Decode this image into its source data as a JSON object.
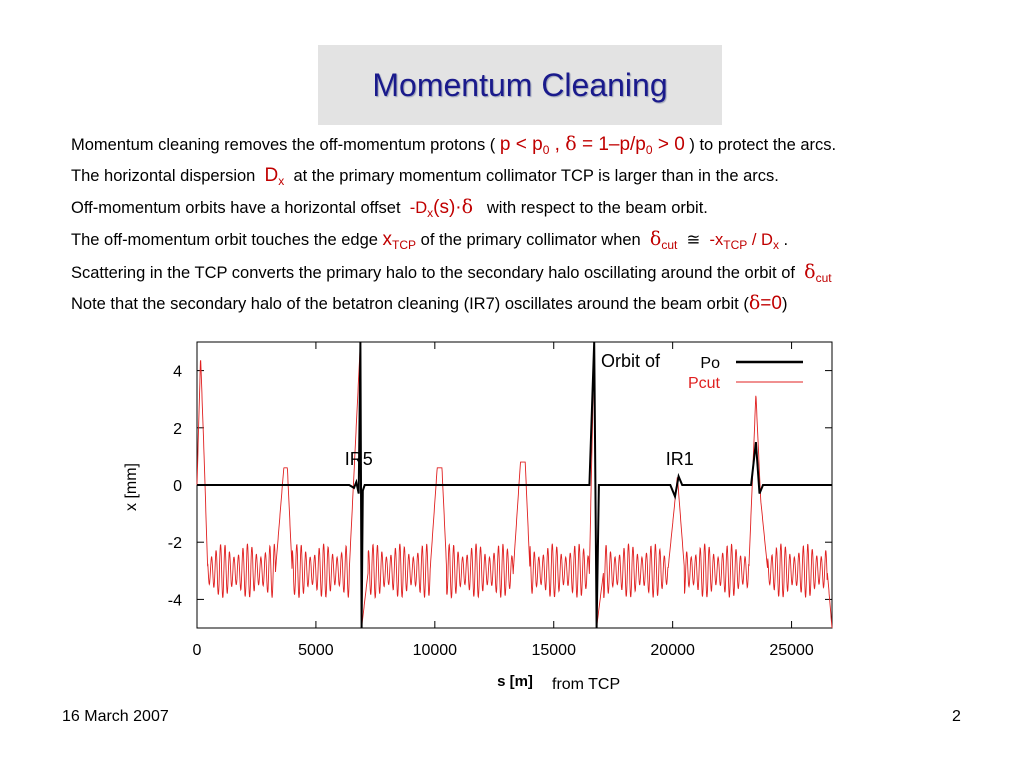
{
  "title": "Momentum Cleaning",
  "lines": [
    {
      "a": "Momentum cleaning removes the off-momentum protons (",
      "r1": "p < p",
      "s1": "0",
      "r2": " , ",
      "sym": "δ",
      "r3": " = 1–p/p",
      "s2": "0",
      "r4": " > 0",
      "b": ")  to protect the arcs."
    },
    {
      "a": "The horizontal dispersion",
      "r1": "D",
      "s1": "x",
      "b": "at the primary momentum collimator TCP is larger than in the arcs."
    },
    {
      "a": "Off-momentum orbits  have a horizontal offset",
      "r1": "-D",
      "s1": "x",
      "r2": "(s)·",
      "sym": "δ",
      "b": "with respect to the beam orbit."
    },
    {
      "a": "The off-momentum orbit  touches the edge",
      "r1": "x",
      "s1": "TCP",
      "b": "of the primary collimator  when",
      "sym": "δ",
      "s2": "cut",
      "approx": "≅",
      "r2": "-x",
      "s3": "TCP",
      "r3": " / D",
      "s4": "x",
      "end": " ."
    },
    {
      "a": "Scattering in the TCP converts the primary halo to the secondary halo  oscillating around the orbit of",
      "sym": "δ",
      "s1": "cut"
    },
    {
      "a": "Note that the secondary halo of the betatron cleaning (IR7) oscillates around the beam orbit   (",
      "sym": "δ",
      "r1": "=0",
      "b": ")"
    }
  ],
  "footer": {
    "date": "16 March 2007",
    "page": "2"
  },
  "chart_data": {
    "type": "line",
    "xlabel": "s [m]",
    "xlabel_note": "from TCP",
    "ylabel": "x [mm]",
    "xlim": [
      0,
      26700
    ],
    "ylim": [
      -5,
      5
    ],
    "xticks": [
      0,
      5000,
      10000,
      15000,
      20000,
      25000
    ],
    "yticks": [
      -4,
      -2,
      0,
      2,
      4
    ],
    "legend": {
      "title": "Orbit of",
      "position": "top-right"
    },
    "annotations": [
      {
        "text": "IR5",
        "x": 6800,
        "y": 0.7
      },
      {
        "text": "IR1",
        "x": 20300,
        "y": 0.7
      }
    ],
    "series": [
      {
        "name": "Po",
        "color": "#000000",
        "points": [
          [
            0,
            0
          ],
          [
            6400,
            0
          ],
          [
            6600,
            -0.1
          ],
          [
            6700,
            0.1
          ],
          [
            6800,
            -0.3
          ],
          [
            6870,
            5
          ],
          [
            6920,
            -5
          ],
          [
            6970,
            -0.2
          ],
          [
            7050,
            0
          ],
          [
            16500,
            0
          ],
          [
            16700,
            5
          ],
          [
            16800,
            -5
          ],
          [
            16900,
            0
          ],
          [
            19900,
            0
          ],
          [
            20100,
            -0.4
          ],
          [
            20250,
            0.3
          ],
          [
            20400,
            0
          ],
          [
            23300,
            0
          ],
          [
            23500,
            1.5
          ],
          [
            23650,
            -0.3
          ],
          [
            23800,
            0
          ],
          [
            26700,
            0
          ]
        ]
      },
      {
        "name": "Pcut",
        "color": "#e02020",
        "envelope": [
          {
            "x": 0,
            "y": 0
          },
          {
            "x": 150,
            "y": 4.5
          },
          {
            "x": 300,
            "y": 1
          },
          {
            "x": 450,
            "y": -3.0
          },
          {
            "x": 3300,
            "y": -3.0
          },
          {
            "x": 3650,
            "y": 0.6
          },
          {
            "x": 3800,
            "y": 0.6
          },
          {
            "x": 4000,
            "y": -3.0
          },
          {
            "x": 6400,
            "y": -3.0
          },
          {
            "x": 6870,
            "y": 5
          },
          {
            "x": 6920,
            "y": -5
          },
          {
            "x": 7200,
            "y": -3.0
          },
          {
            "x": 9800,
            "y": -3.0
          },
          {
            "x": 10100,
            "y": 0.6
          },
          {
            "x": 10300,
            "y": 0.6
          },
          {
            "x": 10500,
            "y": -3.0
          },
          {
            "x": 13300,
            "y": -3.0
          },
          {
            "x": 13600,
            "y": 0.8
          },
          {
            "x": 13800,
            "y": 0.8
          },
          {
            "x": 14000,
            "y": -3.0
          },
          {
            "x": 16500,
            "y": -3.0
          },
          {
            "x": 16700,
            "y": 5
          },
          {
            "x": 16800,
            "y": -5
          },
          {
            "x": 17100,
            "y": -3.0
          },
          {
            "x": 19800,
            "y": -3.0
          },
          {
            "x": 20200,
            "y": 0.3
          },
          {
            "x": 20500,
            "y": -3.0
          },
          {
            "x": 23200,
            "y": -3.0
          },
          {
            "x": 23500,
            "y": 3.2
          },
          {
            "x": 23700,
            "y": -0.5
          },
          {
            "x": 24000,
            "y": -3.0
          },
          {
            "x": 26500,
            "y": -3.0
          },
          {
            "x": 26700,
            "y": -5
          }
        ]
      }
    ]
  }
}
